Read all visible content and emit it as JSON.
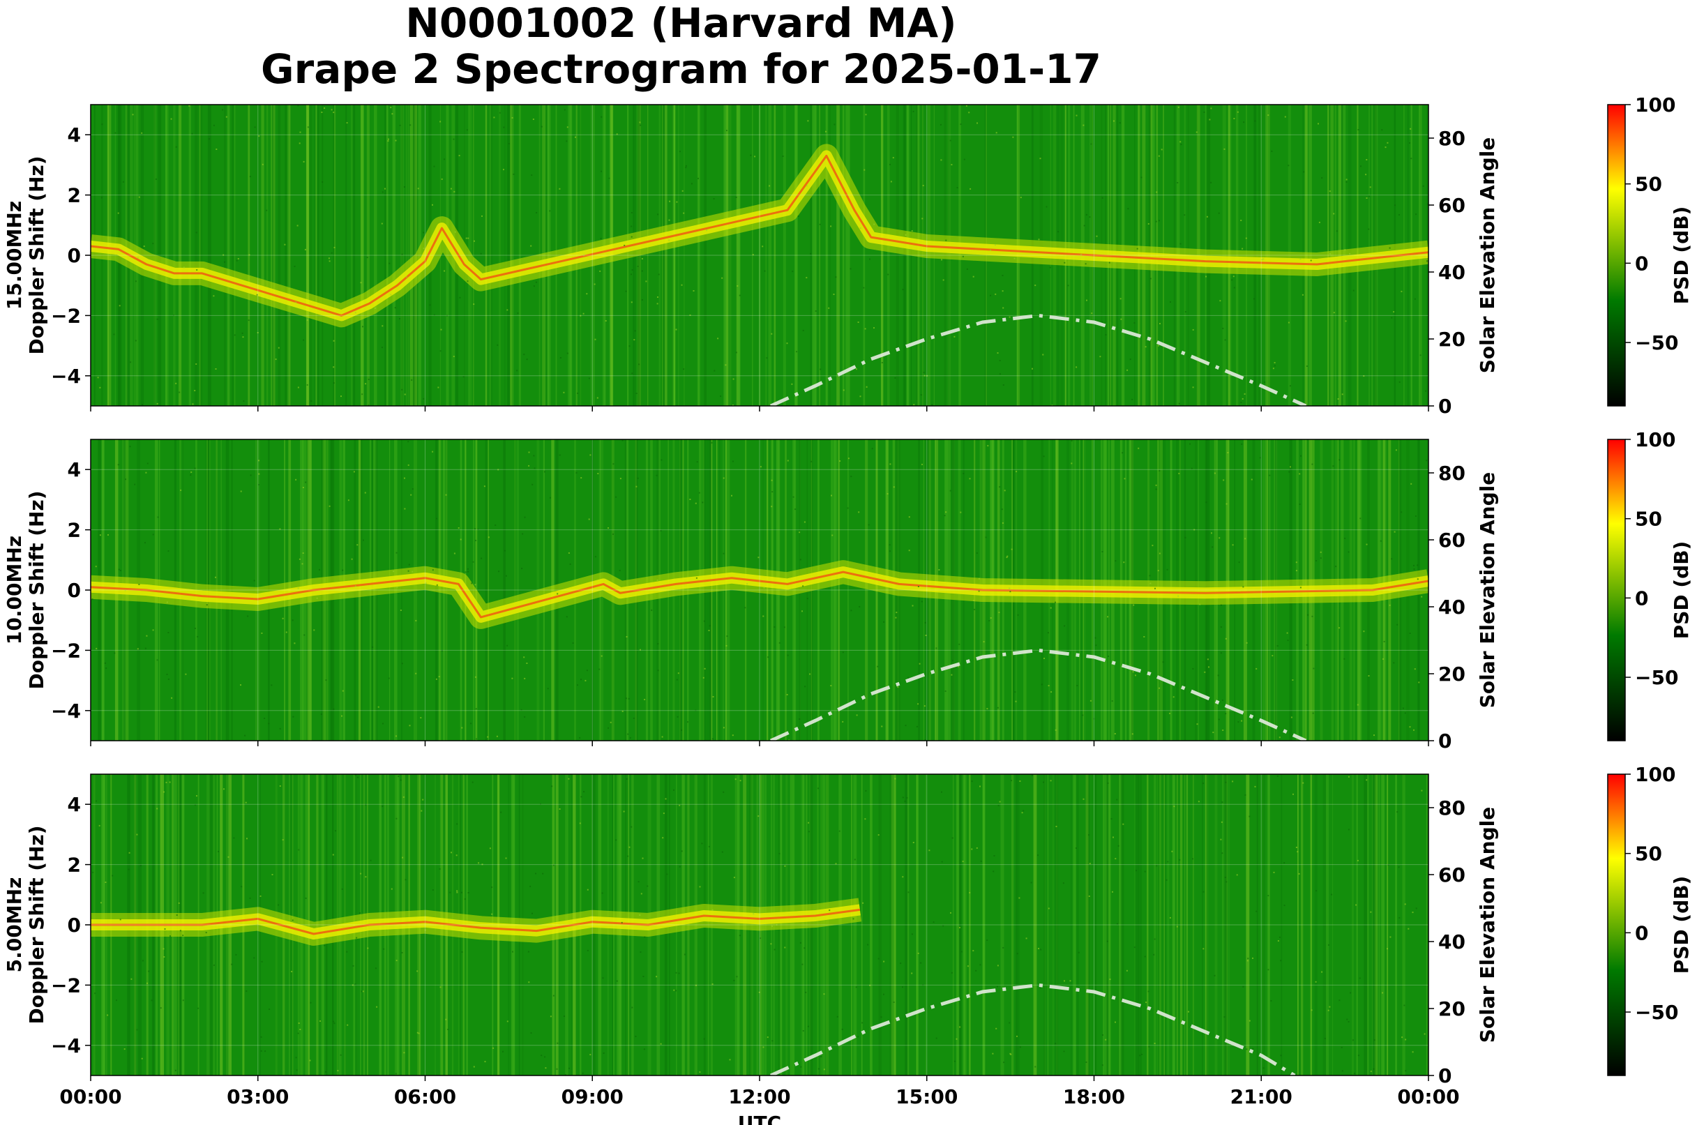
{
  "figure": {
    "title_line1": "N0001002 (Harvard MA)",
    "title_line2": "Grape 2 Spectrogram for 2025-01-17"
  },
  "chart_data": [
    {
      "type": "heatmap",
      "panel": "top",
      "ylabel_line1": "15.00MHz",
      "ylabel_line2": "Doppler Shift (Hz)",
      "y2label": "Solar Elevation Angle",
      "xlabel": "",
      "ylim": [
        -5,
        5
      ],
      "y2lim": [
        0,
        90
      ],
      "yticks": [
        4,
        2,
        0,
        -2,
        -4
      ],
      "ytick_labels": [
        "4",
        "2",
        "0",
        "−2",
        "−4"
      ],
      "y2ticks": [
        80,
        60,
        40,
        20,
        0
      ],
      "xlim_hours": [
        0,
        24
      ],
      "xticks_hours": [
        0,
        3,
        6,
        9,
        12,
        15,
        18,
        21,
        24
      ],
      "xtick_labels": [],
      "colorbar": {
        "label": "PSD (dB)",
        "range": [
          -90,
          100
        ],
        "ticks": [
          100,
          50,
          0,
          -50
        ],
        "tick_labels": [
          "100",
          "50",
          "0",
          "−50"
        ],
        "colors": [
          "#000000",
          "#007a00",
          "#ffff00",
          "#ff0000"
        ]
      },
      "doppler_trace": [
        [
          0.0,
          0.3
        ],
        [
          0.5,
          0.2
        ],
        [
          1.0,
          -0.3
        ],
        [
          1.5,
          -0.6
        ],
        [
          2.0,
          -0.6
        ],
        [
          4.5,
          -2.0
        ],
        [
          5.0,
          -1.6
        ],
        [
          5.5,
          -1.0
        ],
        [
          6.0,
          -0.2
        ],
        [
          6.3,
          0.9
        ],
        [
          6.7,
          -0.3
        ],
        [
          7.0,
          -0.8
        ],
        [
          12.5,
          1.5
        ],
        [
          13.2,
          3.3
        ],
        [
          13.7,
          1.5
        ],
        [
          14.0,
          0.6
        ],
        [
          15.0,
          0.3
        ],
        [
          16.0,
          0.2
        ],
        [
          18.0,
          0.0
        ],
        [
          20.0,
          -0.2
        ],
        [
          22.0,
          -0.3
        ],
        [
          23.0,
          -0.1
        ],
        [
          24.0,
          0.1
        ]
      ],
      "solar_elevation": [
        [
          12.2,
          0
        ],
        [
          13.0,
          6
        ],
        [
          14.0,
          14
        ],
        [
          15.0,
          20
        ],
        [
          16.0,
          25
        ],
        [
          17.0,
          27
        ],
        [
          18.0,
          25
        ],
        [
          19.0,
          20
        ],
        [
          20.0,
          13
        ],
        [
          21.0,
          6
        ],
        [
          21.8,
          0
        ]
      ]
    },
    {
      "type": "heatmap",
      "panel": "middle",
      "ylabel_line1": "10.00MHz",
      "ylabel_line2": "Doppler Shift (Hz)",
      "y2label": "Solar Elevation Angle",
      "xlabel": "",
      "ylim": [
        -5,
        5
      ],
      "y2lim": [
        0,
        90
      ],
      "yticks": [
        4,
        2,
        0,
        -2,
        -4
      ],
      "ytick_labels": [
        "4",
        "2",
        "0",
        "−2",
        "−4"
      ],
      "y2ticks": [
        80,
        60,
        40,
        20,
        0
      ],
      "xlim_hours": [
        0,
        24
      ],
      "xticks_hours": [
        0,
        3,
        6,
        9,
        12,
        15,
        18,
        21,
        24
      ],
      "xtick_labels": [],
      "colorbar": {
        "label": "PSD (dB)",
        "range": [
          -90,
          100
        ],
        "ticks": [
          100,
          50,
          0,
          -50
        ],
        "tick_labels": [
          "100",
          "50",
          "0",
          "−50"
        ],
        "colors": [
          "#000000",
          "#007a00",
          "#ffff00",
          "#ff0000"
        ]
      },
      "doppler_trace": [
        [
          0.0,
          0.1
        ],
        [
          1.0,
          0.0
        ],
        [
          2.0,
          -0.2
        ],
        [
          3.0,
          -0.3
        ],
        [
          4.0,
          0.0
        ],
        [
          5.0,
          0.2
        ],
        [
          6.0,
          0.4
        ],
        [
          6.6,
          0.2
        ],
        [
          7.0,
          -0.9
        ],
        [
          9.2,
          0.2
        ],
        [
          9.5,
          -0.1
        ],
        [
          10.5,
          0.2
        ],
        [
          11.5,
          0.4
        ],
        [
          12.5,
          0.2
        ],
        [
          13.5,
          0.6
        ],
        [
          14.5,
          0.2
        ],
        [
          16.0,
          0.0
        ],
        [
          20.0,
          -0.1
        ],
        [
          23.0,
          0.0
        ],
        [
          24.0,
          0.3
        ]
      ],
      "solar_elevation": [
        [
          12.2,
          0
        ],
        [
          13.0,
          6
        ],
        [
          14.0,
          14
        ],
        [
          15.0,
          20
        ],
        [
          16.0,
          25
        ],
        [
          17.0,
          27
        ],
        [
          18.0,
          25
        ],
        [
          19.0,
          20
        ],
        [
          20.0,
          13
        ],
        [
          21.0,
          6
        ],
        [
          21.8,
          0
        ]
      ]
    },
    {
      "type": "heatmap",
      "panel": "bottom",
      "ylabel_line1": "5.00MHz",
      "ylabel_line2": "Doppler Shift (Hz)",
      "y2label": "Solar Elevation Angle",
      "xlabel": "UTC",
      "ylim": [
        -5,
        5
      ],
      "y2lim": [
        0,
        90
      ],
      "yticks": [
        4,
        2,
        0,
        -2,
        -4
      ],
      "ytick_labels": [
        "4",
        "2",
        "0",
        "−2",
        "−4"
      ],
      "y2ticks": [
        80,
        60,
        40,
        20,
        0
      ],
      "xlim_hours": [
        0,
        24
      ],
      "xticks_hours": [
        0,
        3,
        6,
        9,
        12,
        15,
        18,
        21,
        24
      ],
      "xtick_labels": [
        "00:00",
        "03:00",
        "06:00",
        "09:00",
        "12:00",
        "15:00",
        "18:00",
        "21:00",
        "00:00"
      ],
      "colorbar": {
        "label": "PSD (dB)",
        "range": [
          -90,
          100
        ],
        "ticks": [
          100,
          50,
          0,
          -50
        ],
        "tick_labels": [
          "100",
          "50",
          "0",
          "−50"
        ],
        "colors": [
          "#000000",
          "#007a00",
          "#ffff00",
          "#ff0000"
        ]
      },
      "doppler_trace": [
        [
          0.0,
          0.0
        ],
        [
          1.0,
          0.0
        ],
        [
          2.0,
          0.0
        ],
        [
          3.0,
          0.2
        ],
        [
          4.0,
          -0.3
        ],
        [
          5.0,
          0.0
        ],
        [
          6.0,
          0.1
        ],
        [
          7.0,
          -0.1
        ],
        [
          8.0,
          -0.2
        ],
        [
          9.0,
          0.1
        ],
        [
          10.0,
          0.0
        ],
        [
          11.0,
          0.3
        ],
        [
          12.0,
          0.2
        ],
        [
          13.0,
          0.3
        ],
        [
          13.8,
          0.5
        ]
      ],
      "solar_elevation": [
        [
          12.2,
          0
        ],
        [
          13.0,
          6
        ],
        [
          14.0,
          14
        ],
        [
          15.0,
          20
        ],
        [
          16.0,
          25
        ],
        [
          17.0,
          27
        ],
        [
          18.0,
          25
        ],
        [
          19.0,
          20
        ],
        [
          20.0,
          13
        ],
        [
          21.0,
          6
        ],
        [
          21.6,
          0
        ]
      ]
    }
  ]
}
